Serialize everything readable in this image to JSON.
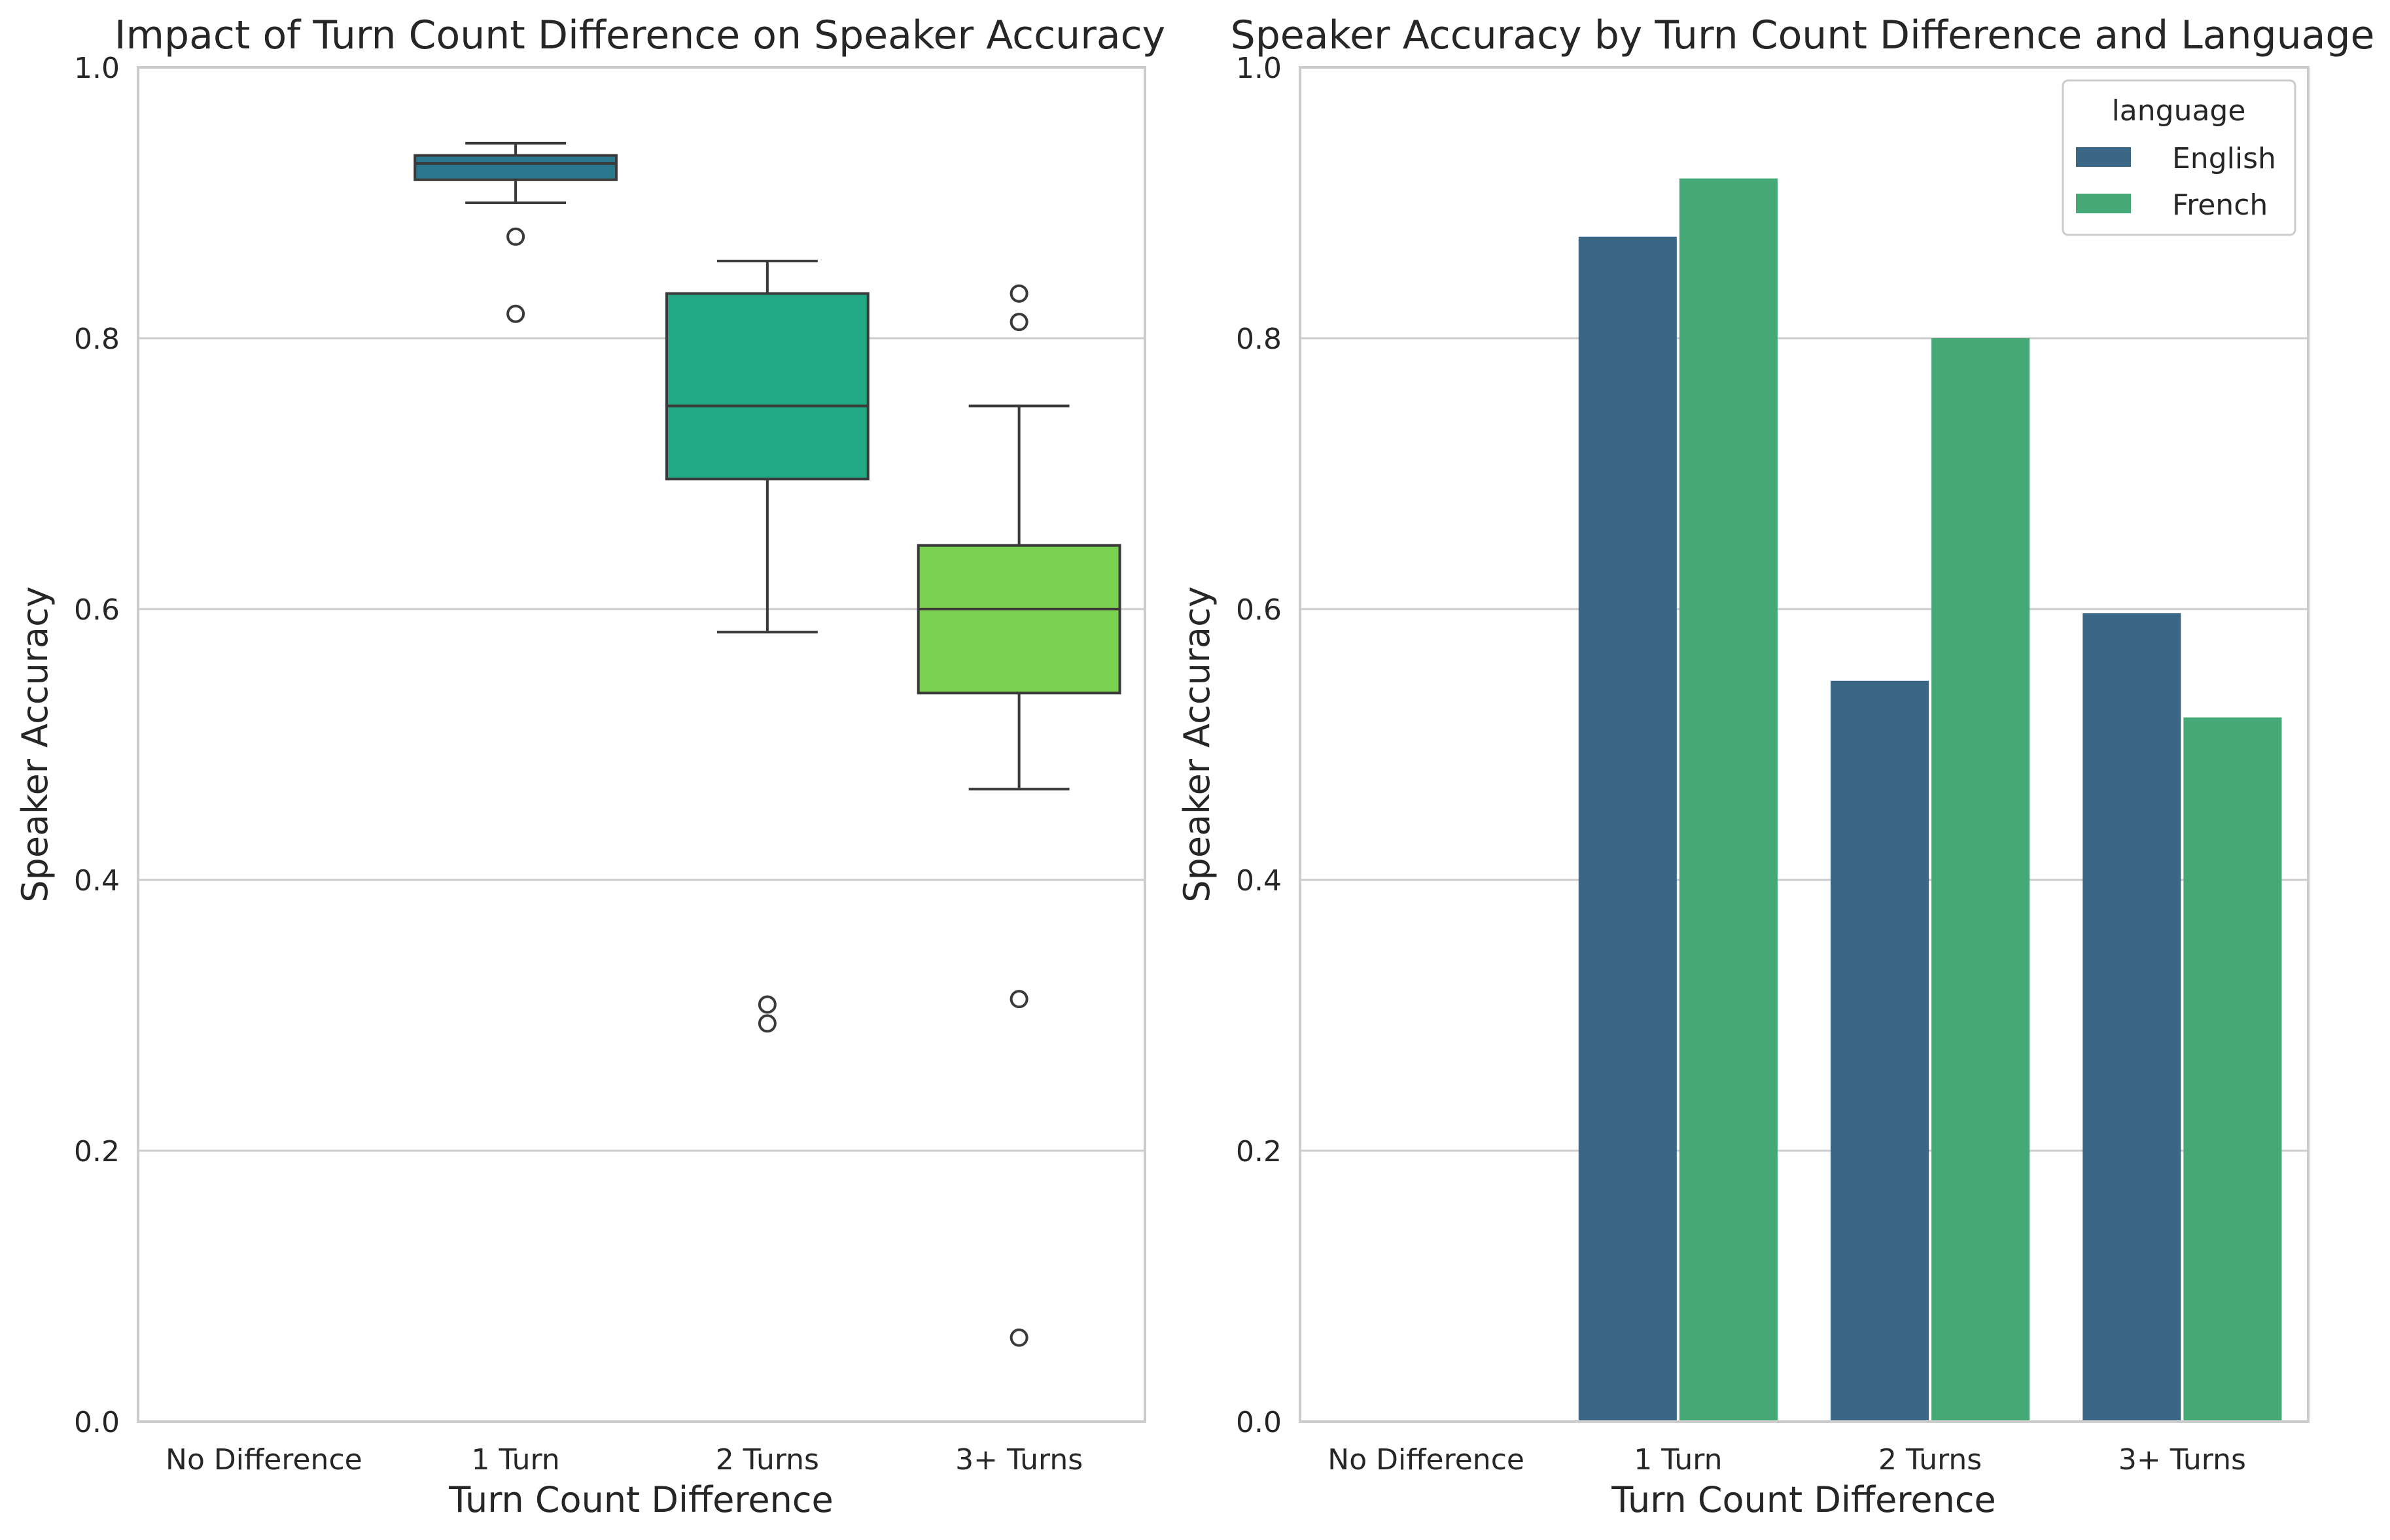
{
  "chart_data": [
    {
      "type": "box",
      "title": "Impact of Turn Count Difference on Speaker Accuracy",
      "xlabel": "Turn Count Difference",
      "ylabel": "Speaker Accuracy",
      "ylim": [
        0,
        1
      ],
      "yticks": [
        "0.0",
        "0.2",
        "0.4",
        "0.6",
        "0.8",
        "1.0"
      ],
      "categories": [
        "No Difference",
        "1 Turn",
        "2 Turns",
        "3+ Turns"
      ],
      "grid": "horizontal",
      "boxes": [
        {
          "category": "No Difference",
          "empty": true
        },
        {
          "category": "1 Turn",
          "color": "#2a788e",
          "whislo": 0.9,
          "q1": 0.917,
          "med": 0.929,
          "q3": 0.935,
          "whishi": 0.944,
          "fliers": [
            0.875,
            0.818
          ]
        },
        {
          "category": "2 Turns",
          "color": "#22a884",
          "whislo": 0.583,
          "q1": 0.696,
          "med": 0.75,
          "q3": 0.833,
          "whishi": 0.857,
          "fliers": [
            0.308,
            0.294
          ]
        },
        {
          "category": "3+ Turns",
          "color": "#7ad151",
          "whislo": 0.467,
          "q1": 0.538,
          "med": 0.6,
          "q3": 0.647,
          "whishi": 0.75,
          "fliers": [
            0.833,
            0.812,
            0.312,
            0.062
          ]
        }
      ]
    },
    {
      "type": "bar",
      "title": "Speaker Accuracy by Turn Count Difference and Language",
      "xlabel": "Turn Count Difference",
      "ylabel": "Speaker Accuracy",
      "ylim": [
        0,
        1
      ],
      "yticks": [
        "0.0",
        "0.2",
        "0.4",
        "0.6",
        "0.8",
        "1.0"
      ],
      "categories": [
        "No Difference",
        "1 Turn",
        "2 Turns",
        "3+ Turns"
      ],
      "grid": "horizontal",
      "legend": {
        "title": "language",
        "placement": "top-right"
      },
      "series": [
        {
          "name": "English",
          "color": "#3b6685",
          "values": [
            null,
            0.875,
            0.547,
            0.597
          ]
        },
        {
          "name": "French",
          "color": "#45a977",
          "values": [
            null,
            0.918,
            0.8,
            0.52
          ]
        }
      ]
    }
  ]
}
